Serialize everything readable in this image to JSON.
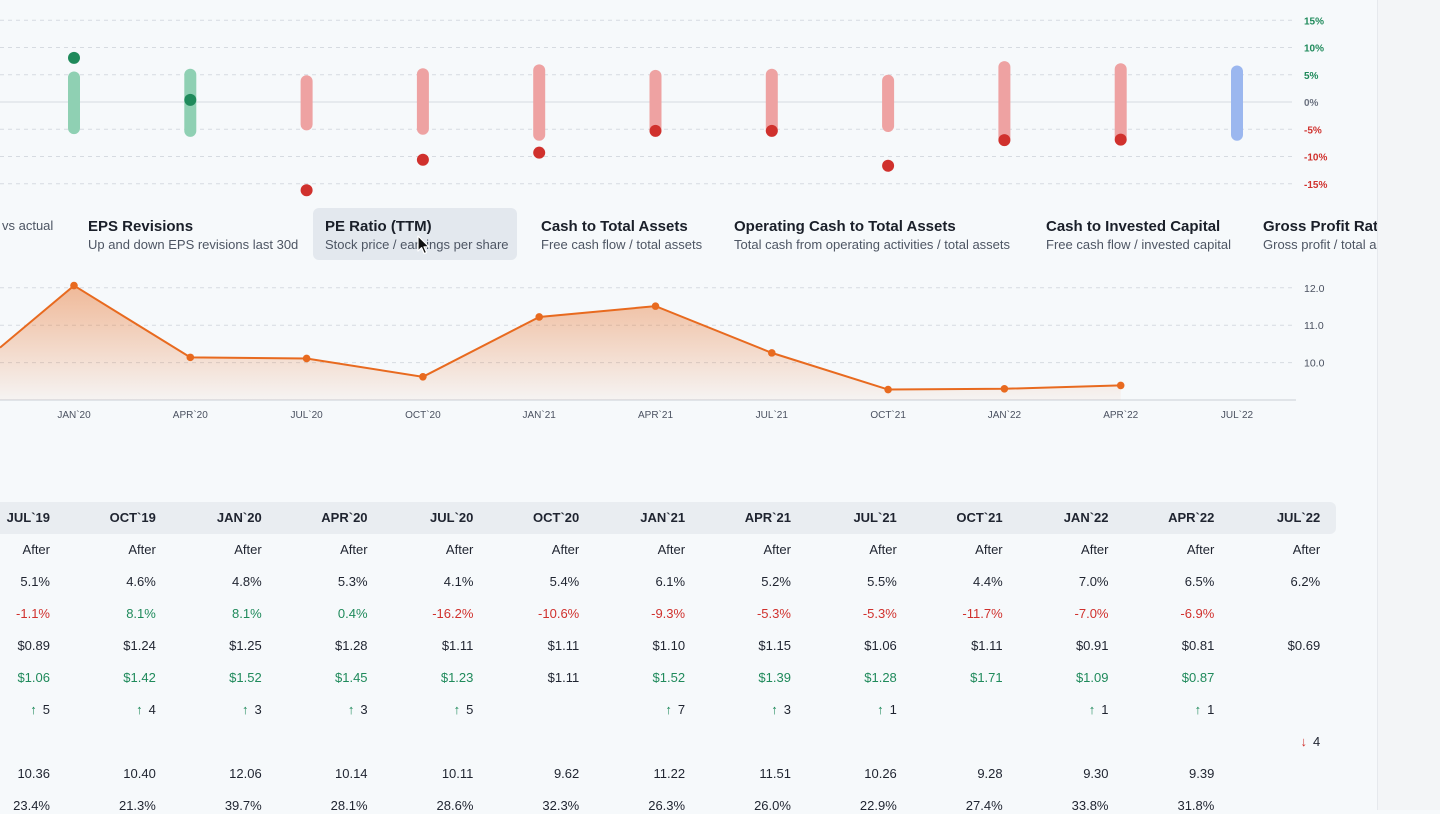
{
  "colors": {
    "positive": "#1f8a5b",
    "negative": "#d0312d",
    "pe_line": "#e86a1f",
    "estimate_bar_pos": "#8fd0b3",
    "estimate_bar_neg": "#eea2a2",
    "estimate_bar_future": "#9bb7ef"
  },
  "surprise_chart": {
    "y_ticks": [
      "15%",
      "10%",
      "5%",
      "0%",
      "-5%",
      "-10%",
      "-15%"
    ],
    "y_values": [
      15,
      10,
      5,
      0,
      -5,
      -10,
      -15
    ],
    "bars": [
      {
        "low": -4.8,
        "high": 4.5,
        "status": "positive"
      },
      {
        "low": -5.3,
        "high": 5.0,
        "status": "positive"
      },
      {
        "low": -4.1,
        "high": 3.8,
        "status": "negative"
      },
      {
        "low": -4.9,
        "high": 5.1,
        "status": "negative"
      },
      {
        "low": -6.0,
        "high": 5.8,
        "status": "negative"
      },
      {
        "low": -5.0,
        "high": 4.8,
        "status": "negative"
      },
      {
        "low": -5.2,
        "high": 5.0,
        "status": "negative"
      },
      {
        "low": -4.4,
        "high": 3.9,
        "status": "negative"
      },
      {
        "low": -6.7,
        "high": 6.4,
        "status": "negative"
      },
      {
        "low": -6.4,
        "high": 6.0,
        "status": "negative"
      },
      {
        "low": -6.0,
        "high": 5.6,
        "status": "future"
      }
    ],
    "surprise": [
      8.1,
      0.4,
      -16.2,
      -10.6,
      -9.3,
      -5.3,
      -5.3,
      -11.7,
      -7.0,
      -6.9,
      null
    ]
  },
  "tabs": [
    {
      "title": "",
      "subtitle": "vs actual"
    },
    {
      "title": "EPS Revisions",
      "subtitle": "Up and down EPS revisions last 30d"
    },
    {
      "title": "PE Ratio (TTM)",
      "subtitle": "Stock price / earnings per share"
    },
    {
      "title": "Cash to Total Assets",
      "subtitle": "Free cash flow / total assets"
    },
    {
      "title": "Operating Cash to Total Assets",
      "subtitle": "Total cash from operating activities / total assets"
    },
    {
      "title": "Cash to Invested Capital",
      "subtitle": "Free cash flow / invested capital"
    },
    {
      "title": "Gross Profit Ratio",
      "subtitle": "Gross profit / total assets"
    }
  ],
  "chart_data": {
    "type": "area",
    "x": [
      "JAN`20",
      "APR`20",
      "JUL`20",
      "OCT`20",
      "JAN`21",
      "APR`21",
      "JUL`21",
      "OCT`21",
      "JAN`22",
      "APR`22",
      "JUL`22"
    ],
    "series": [
      {
        "values": [
          12.06,
          10.14,
          10.11,
          9.62,
          11.22,
          11.51,
          10.26,
          9.28,
          9.3,
          9.39,
          null
        ]
      }
    ],
    "leading_value": 10.4,
    "y_ticks": [
      10.0,
      11.0,
      12.0
    ],
    "ylim": [
      9.0,
      12.3
    ],
    "grid": true
  },
  "table": {
    "columns": [
      "JUL`19",
      "OCT`19",
      "JAN`20",
      "APR`20",
      "JUL`20",
      "OCT`20",
      "JAN`21",
      "APR`21",
      "JUL`21",
      "OCT`21",
      "JAN`22",
      "APR`22",
      "JUL`22"
    ],
    "rows": [
      {
        "cells": [
          {
            "text": "After"
          },
          {
            "text": "After"
          },
          {
            "text": "After"
          },
          {
            "text": "After"
          },
          {
            "text": "After"
          },
          {
            "text": "After"
          },
          {
            "text": "After"
          },
          {
            "text": "After"
          },
          {
            "text": "After"
          },
          {
            "text": "After"
          },
          {
            "text": "After"
          },
          {
            "text": "After"
          },
          {
            "text": "After"
          }
        ]
      },
      {
        "cells": [
          {
            "text": "5.1%"
          },
          {
            "text": "4.6%"
          },
          {
            "text": "4.8%"
          },
          {
            "text": "5.3%"
          },
          {
            "text": "4.1%"
          },
          {
            "text": "5.4%"
          },
          {
            "text": "6.1%"
          },
          {
            "text": "5.2%"
          },
          {
            "text": "5.5%"
          },
          {
            "text": "4.4%"
          },
          {
            "text": "7.0%"
          },
          {
            "text": "6.5%"
          },
          {
            "text": "6.2%"
          }
        ]
      },
      {
        "cells": [
          {
            "text": "-1.1%",
            "tone": "neg"
          },
          {
            "text": "8.1%",
            "tone": "pos"
          },
          {
            "text": "8.1%",
            "tone": "pos"
          },
          {
            "text": "0.4%",
            "tone": "pos"
          },
          {
            "text": "-16.2%",
            "tone": "neg"
          },
          {
            "text": "-10.6%",
            "tone": "neg"
          },
          {
            "text": "-9.3%",
            "tone": "neg"
          },
          {
            "text": "-5.3%",
            "tone": "neg"
          },
          {
            "text": "-5.3%",
            "tone": "neg"
          },
          {
            "text": "-11.7%",
            "tone": "neg"
          },
          {
            "text": "-7.0%",
            "tone": "neg"
          },
          {
            "text": "-6.9%",
            "tone": "neg"
          },
          {
            "text": ""
          }
        ]
      },
      {
        "cells": [
          {
            "text": "$0.89"
          },
          {
            "text": "$1.24"
          },
          {
            "text": "$1.25"
          },
          {
            "text": "$1.28"
          },
          {
            "text": "$1.11"
          },
          {
            "text": "$1.11"
          },
          {
            "text": "$1.10"
          },
          {
            "text": "$1.15"
          },
          {
            "text": "$1.06"
          },
          {
            "text": "$1.11"
          },
          {
            "text": "$0.91"
          },
          {
            "text": "$0.81"
          },
          {
            "text": "$0.69"
          }
        ]
      },
      {
        "cells": [
          {
            "text": "$1.06",
            "tone": "pos"
          },
          {
            "text": "$1.42",
            "tone": "pos"
          },
          {
            "text": "$1.52",
            "tone": "pos"
          },
          {
            "text": "$1.45",
            "tone": "pos"
          },
          {
            "text": "$1.23",
            "tone": "pos"
          },
          {
            "text": "$1.11"
          },
          {
            "text": "$1.52",
            "tone": "pos"
          },
          {
            "text": "$1.39",
            "tone": "pos"
          },
          {
            "text": "$1.28",
            "tone": "pos"
          },
          {
            "text": "$1.71",
            "tone": "pos"
          },
          {
            "text": "$1.09",
            "tone": "pos"
          },
          {
            "text": "$0.87",
            "tone": "pos"
          },
          {
            "text": ""
          }
        ]
      },
      {
        "cells": [
          {
            "text": "5",
            "arrow": "up",
            "arrow_glyph": "↑"
          },
          {
            "text": "4",
            "arrow": "up",
            "arrow_glyph": "↑"
          },
          {
            "text": "3",
            "arrow": "up",
            "arrow_glyph": "↑"
          },
          {
            "text": "3",
            "arrow": "up",
            "arrow_glyph": "↑"
          },
          {
            "text": "5",
            "arrow": "up",
            "arrow_glyph": "↑"
          },
          {
            "text": ""
          },
          {
            "text": "7",
            "arrow": "up",
            "arrow_glyph": "↑"
          },
          {
            "text": "3",
            "arrow": "up",
            "arrow_glyph": "↑"
          },
          {
            "text": "1",
            "arrow": "up",
            "arrow_glyph": "↑"
          },
          {
            "text": ""
          },
          {
            "text": "1",
            "arrow": "up",
            "arrow_glyph": "↑"
          },
          {
            "text": "1",
            "arrow": "up",
            "arrow_glyph": "↑"
          },
          {
            "text": ""
          }
        ]
      },
      {
        "cells": [
          {
            "text": ""
          },
          {
            "text": ""
          },
          {
            "text": ""
          },
          {
            "text": ""
          },
          {
            "text": ""
          },
          {
            "text": ""
          },
          {
            "text": ""
          },
          {
            "text": ""
          },
          {
            "text": ""
          },
          {
            "text": ""
          },
          {
            "text": ""
          },
          {
            "text": ""
          },
          {
            "text": "4",
            "arrow": "down",
            "arrow_glyph": "↓"
          }
        ]
      },
      {
        "cells": [
          {
            "text": "10.36"
          },
          {
            "text": "10.40"
          },
          {
            "text": "12.06"
          },
          {
            "text": "10.14"
          },
          {
            "text": "10.11"
          },
          {
            "text": "9.62"
          },
          {
            "text": "11.22"
          },
          {
            "text": "11.51"
          },
          {
            "text": "10.26"
          },
          {
            "text": "9.28"
          },
          {
            "text": "9.30"
          },
          {
            "text": "9.39"
          },
          {
            "text": ""
          }
        ]
      },
      {
        "cells": [
          {
            "text": "23.4%"
          },
          {
            "text": "21.3%"
          },
          {
            "text": "39.7%"
          },
          {
            "text": "28.1%"
          },
          {
            "text": "28.6%"
          },
          {
            "text": "32.3%"
          },
          {
            "text": "26.3%"
          },
          {
            "text": "26.0%"
          },
          {
            "text": "22.9%"
          },
          {
            "text": "27.4%"
          },
          {
            "text": "33.8%"
          },
          {
            "text": "31.8%"
          },
          {
            "text": ""
          }
        ]
      }
    ]
  }
}
